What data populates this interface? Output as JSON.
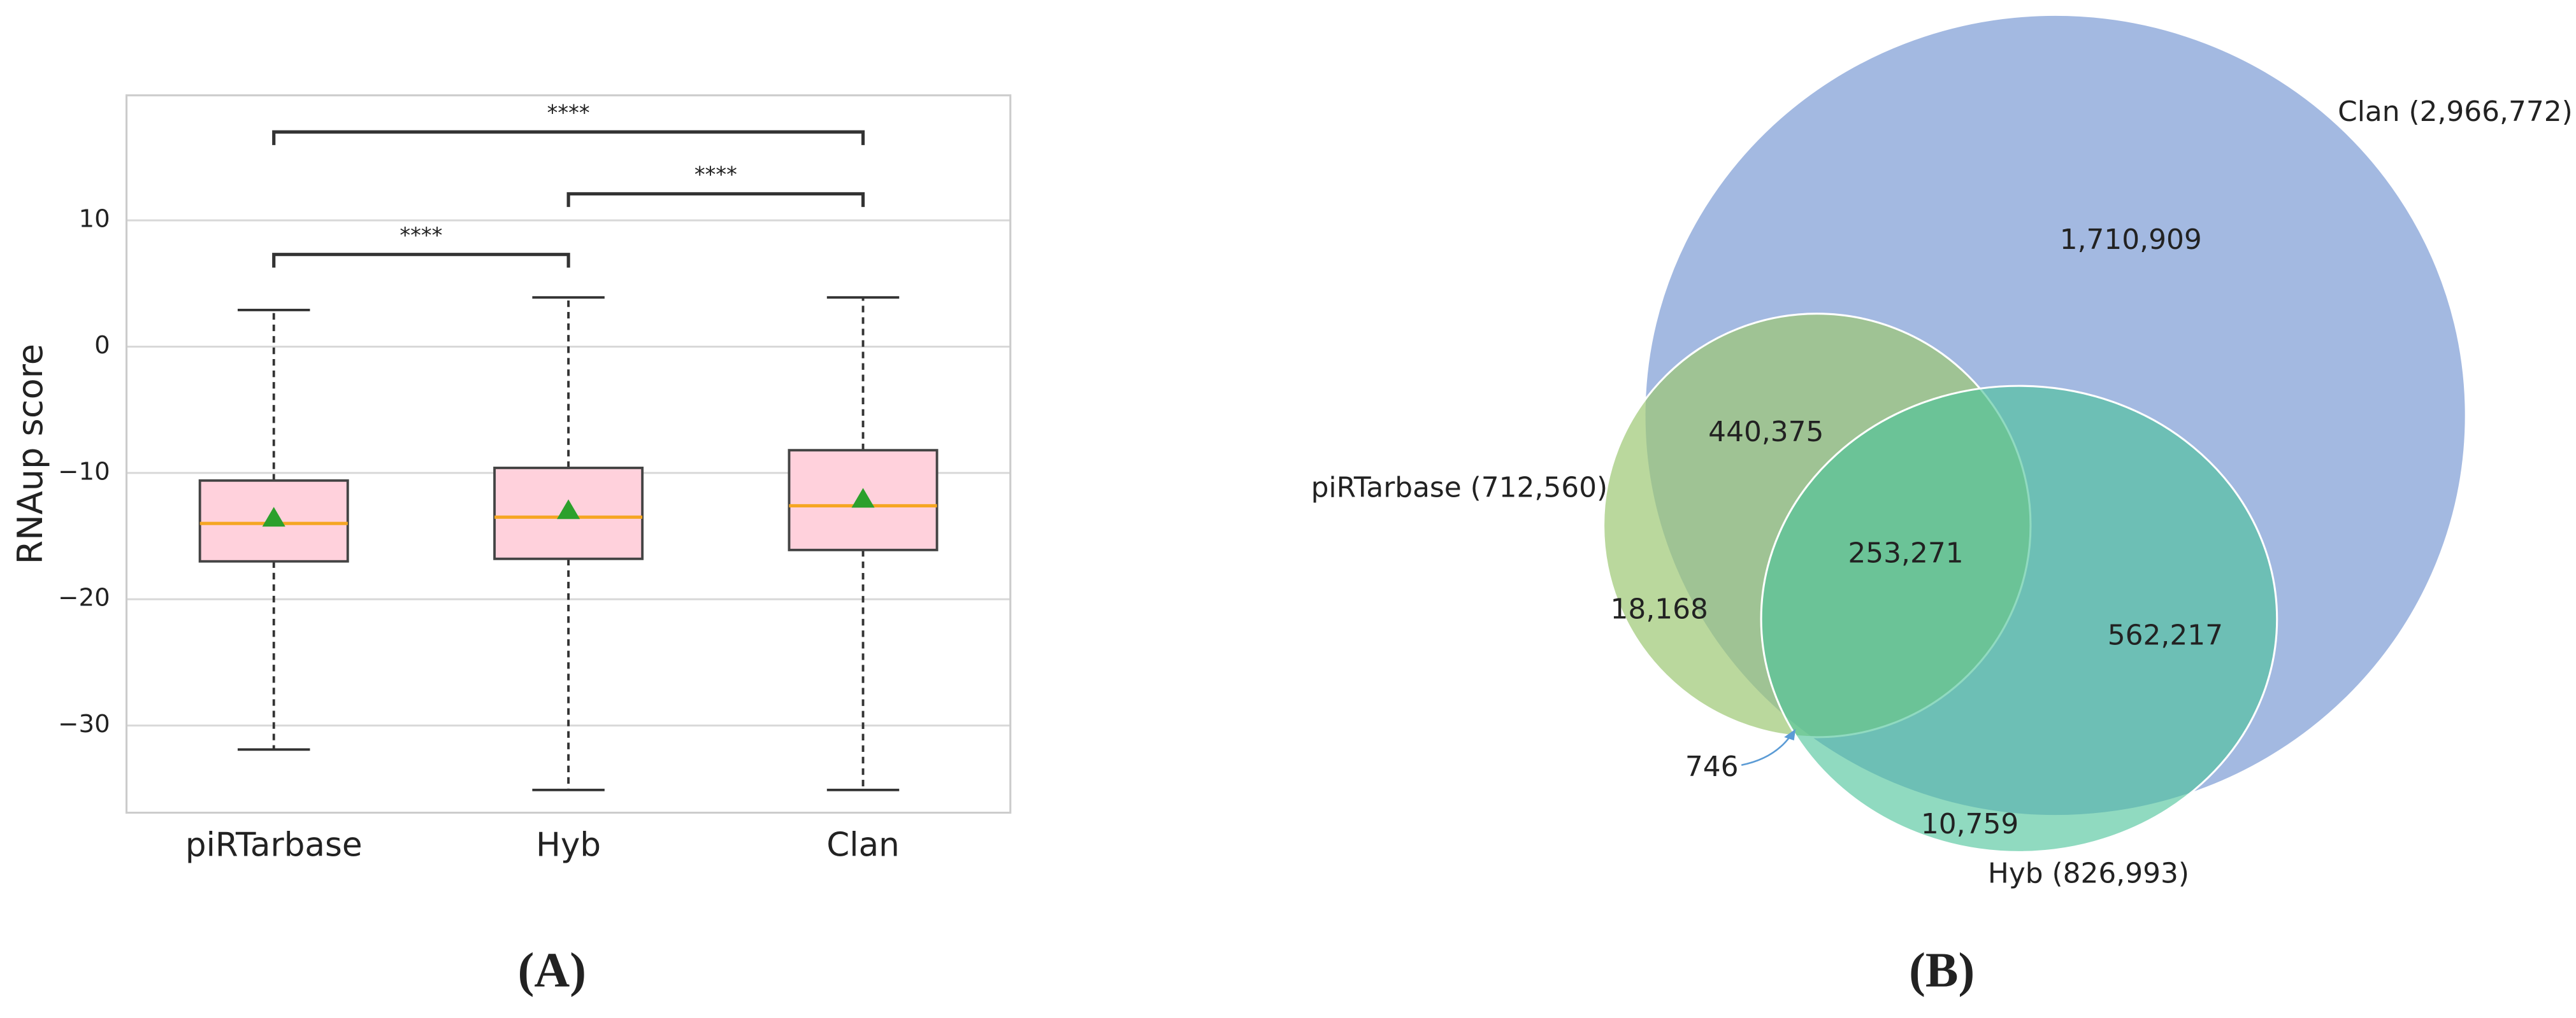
{
  "chart_data": [
    {
      "type": "box",
      "panel_label": "(A)",
      "ylabel": "RNAup score",
      "categories": [
        "piRTarbase",
        "Hyb",
        "Clan"
      ],
      "boxes": [
        {
          "whisker_low": -31.9,
          "q1": -17.0,
          "median": -14.0,
          "q3": -10.6,
          "whisker_high": 2.9,
          "mean": -13.6
        },
        {
          "whisker_low": -35.1,
          "q1": -16.8,
          "median": -13.5,
          "q3": -9.6,
          "whisker_high": 3.9,
          "mean": -13.0
        },
        {
          "whisker_low": -35.1,
          "q1": -16.1,
          "median": -12.6,
          "q3": -8.2,
          "whisker_high": 3.9,
          "mean": -12.1
        }
      ],
      "color": "#ffd1dc",
      "median_color": "#f5a623",
      "mean_color": "#2ca02c",
      "ylim": [
        -36.9,
        19.9
      ],
      "yticks": [
        {
          "value": -30,
          "label": "−30"
        },
        {
          "value": -20,
          "label": "−20"
        },
        {
          "value": -10,
          "label": "−10"
        },
        0,
        10
      ],
      "grid": true,
      "annotations": [
        {
          "from": 0,
          "to": 1,
          "y": 7.3,
          "label": "****"
        },
        {
          "from": 1,
          "to": 2,
          "y": 12.1,
          "label": "****"
        },
        {
          "from": 0,
          "to": 2,
          "y": 17.0,
          "label": "****"
        }
      ]
    },
    {
      "type": "venn",
      "panel_label": "(B)",
      "sets": [
        {
          "label": "Clan (2,966,772)",
          "value": 2966772,
          "color": "#7f9ed6"
        },
        {
          "label": "piRTarbase (712,560)",
          "value": 712560,
          "color": "#9cc873"
        },
        {
          "label": "Hyb (826,993)",
          "value": 826993,
          "color": "#4cc39a"
        }
      ],
      "regions": [
        {
          "value": 1710909,
          "label": "1,710,909"
        },
        {
          "value": 440375,
          "label": "440,375"
        },
        {
          "value": 253271,
          "label": "253,271"
        },
        {
          "value": 562217,
          "label": "562,217"
        },
        {
          "value": 18168,
          "label": "18,168"
        },
        {
          "value": 746,
          "label": "746"
        },
        {
          "value": 10759,
          "label": "10,759"
        }
      ]
    }
  ]
}
